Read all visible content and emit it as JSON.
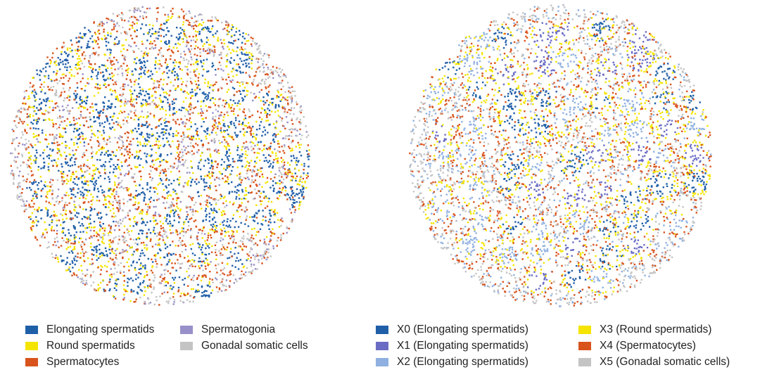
{
  "panels": [
    {
      "name": "cell-type-map",
      "colors": [
        "#1f5fa8",
        "#f5e400",
        "#d9531c",
        "#9890c8",
        "#c4c4c4"
      ]
    },
    {
      "name": "cluster-map",
      "colors": [
        "#1f5fa8",
        "#6a6cc4",
        "#8fb0e0",
        "#f5e400",
        "#d9531c",
        "#c4c4c4"
      ]
    }
  ],
  "legend_left": [
    {
      "label": "Elongating spermatids",
      "color": "#1f5fa8"
    },
    {
      "label": "Round spermatids",
      "color": "#f5e400"
    },
    {
      "label": "Spermatocytes",
      "color": "#d9531c"
    },
    {
      "label": "Spermatogonia",
      "color": "#9890c8"
    },
    {
      "label": "Gonadal somatic cells",
      "color": "#c4c4c4"
    }
  ],
  "legend_right": [
    {
      "label": "X0 (Elongating spermatids)",
      "color": "#1f5fa8"
    },
    {
      "label": "X1 (Elongating spermatids)",
      "color": "#6a6cc4"
    },
    {
      "label": "X2 (Elongating spermatids)",
      "color": "#8fb0e0"
    },
    {
      "label": "X3 (Round spermatids)",
      "color": "#f5e400"
    },
    {
      "label": "X4 (Spermatocytes)",
      "color": "#d9531c"
    },
    {
      "label": "X5 (Gonadal somatic cells)",
      "color": "#c4c4c4"
    }
  ]
}
